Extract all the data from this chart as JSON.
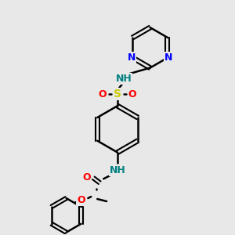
{
  "background_color": "#e8e8e8",
  "bond_color": "#000000",
  "atom_colors": {
    "N": "#0000ff",
    "O": "#ff0000",
    "S": "#cccc00",
    "H": "#008080",
    "C": "#000000"
  },
  "figsize": [
    3.0,
    3.0
  ],
  "dpi": 100
}
